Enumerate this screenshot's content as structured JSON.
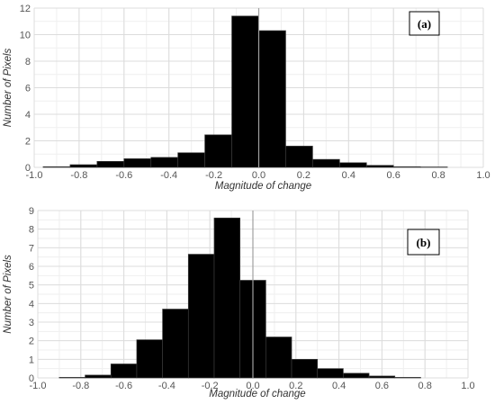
{
  "chart_data": [
    {
      "type": "bar",
      "panel_label": "(a)",
      "xlabel": "Magnitude of change",
      "ylabel": "Number of Pixels",
      "xlim": [
        -1.0,
        1.0
      ],
      "ylim": [
        0,
        12
      ],
      "xticks": [
        "-1.0",
        "-0.8",
        "-0.6",
        "-0.4",
        "-0.2",
        "0.0",
        "0.2",
        "0.4",
        "0.6",
        "0.8",
        "1.0"
      ],
      "yticks": [
        "0",
        "2",
        "4",
        "6",
        "8",
        "10",
        "12"
      ],
      "grid": true,
      "reference_line_x": 0.0,
      "bar_color": "#000000",
      "bin_edges": [
        -0.96,
        -0.84,
        -0.72,
        -0.6,
        -0.48,
        -0.36,
        -0.24,
        -0.12,
        0.0,
        0.12,
        0.24,
        0.36,
        0.48,
        0.6,
        0.72,
        0.84
      ],
      "values": [
        0.05,
        0.2,
        0.45,
        0.65,
        0.75,
        1.1,
        2.45,
        11.4,
        10.3,
        1.6,
        0.6,
        0.35,
        0.15,
        0.05,
        0.03
      ]
    },
    {
      "type": "bar",
      "panel_label": "(b)",
      "xlabel": "Magnitude of change",
      "ylabel": "Number of Pixels",
      "xlim": [
        -1.0,
        1.0
      ],
      "ylim": [
        0,
        9
      ],
      "xticks": [
        "-1.0",
        "-0.8",
        "-0.6",
        "-0.4",
        "-0.2",
        "0.0",
        "0.2",
        "0.4",
        "0.6",
        "0.8",
        "1.0"
      ],
      "yticks": [
        "0",
        "1",
        "2",
        "3",
        "4",
        "5",
        "6",
        "7",
        "8",
        "9"
      ],
      "grid": true,
      "reference_line_x": 0.0,
      "bar_color": "#000000",
      "bin_edges": [
        -0.9,
        -0.78,
        -0.66,
        -0.54,
        -0.42,
        -0.3,
        -0.18,
        -0.06,
        0.06,
        0.18,
        0.3,
        0.42,
        0.54,
        0.66,
        0.78
      ],
      "values": [
        0.03,
        0.15,
        0.75,
        2.05,
        3.7,
        6.65,
        8.6,
        5.25,
        2.2,
        1.0,
        0.5,
        0.25,
        0.1,
        0.03
      ]
    }
  ]
}
